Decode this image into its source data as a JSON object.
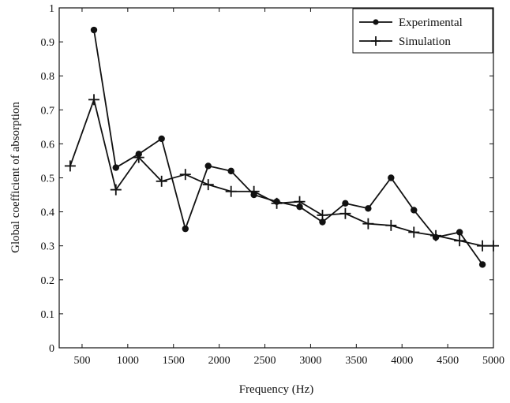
{
  "chart_data": {
    "type": "line",
    "title": "",
    "xlabel": "Frequency (Hz)",
    "ylabel": "Global coefficient of absorption",
    "xlim": [
      250,
      5000
    ],
    "ylim": [
      0,
      1
    ],
    "x_ticks": [
      "500",
      "1000",
      "1500",
      "2000",
      "2500",
      "3000",
      "3500",
      "4000",
      "4500",
      "5000"
    ],
    "y_ticks": [
      "0",
      "0.1",
      "0.2",
      "0.3",
      "0.4",
      "0.5",
      "0.6",
      "0.7",
      "0.8",
      "0.9",
      "1"
    ],
    "grid": false,
    "legend_position": "top-right",
    "series": [
      {
        "name": "Experimental",
        "marker": "circle",
        "x": [
          630,
          870,
          1120,
          1370,
          1630,
          1880,
          2130,
          2380,
          2630,
          2880,
          3130,
          3380,
          3630,
          3880,
          4130,
          4370,
          4630,
          4880
        ],
        "y": [
          0.935,
          0.53,
          0.57,
          0.615,
          0.35,
          0.535,
          0.52,
          0.45,
          0.43,
          0.415,
          0.37,
          0.425,
          0.41,
          0.5,
          0.405,
          0.325,
          0.34,
          0.245
        ]
      },
      {
        "name": "Simulation",
        "marker": "plus",
        "x": [
          370,
          630,
          870,
          1120,
          1370,
          1630,
          1880,
          2130,
          2380,
          2630,
          2880,
          3130,
          3380,
          3630,
          3880,
          4130,
          4370,
          4630,
          4880,
          5000
        ],
        "y": [
          0.535,
          0.73,
          0.465,
          0.56,
          0.49,
          0.51,
          0.48,
          0.46,
          0.46,
          0.425,
          0.43,
          0.39,
          0.395,
          0.365,
          0.36,
          0.34,
          0.33,
          0.315,
          0.3,
          0.3
        ]
      }
    ]
  }
}
